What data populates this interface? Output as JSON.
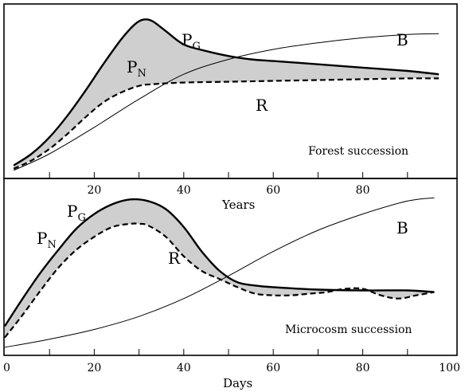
{
  "chart_data": [
    {
      "type": "line",
      "panel": "top",
      "annotation": "Forest succession",
      "xlabel": "Years",
      "x_ticks": [
        20,
        40,
        60,
        80
      ],
      "xlim": [
        0,
        100
      ],
      "ylim": [
        0,
        1
      ],
      "shaded_between": [
        "PG",
        "R"
      ],
      "series": [
        {
          "name": "PG",
          "style": "solid-thick",
          "x": [
            2,
            6,
            10,
            14,
            18,
            22,
            26,
            29,
            31,
            33,
            36,
            40,
            45,
            50,
            55,
            60,
            70,
            80,
            90,
            97
          ],
          "y": [
            0.05,
            0.12,
            0.22,
            0.35,
            0.5,
            0.66,
            0.81,
            0.9,
            0.93,
            0.92,
            0.86,
            0.78,
            0.74,
            0.71,
            0.69,
            0.68,
            0.66,
            0.64,
            0.62,
            0.6
          ]
        },
        {
          "name": "R",
          "style": "dashed",
          "x": [
            2,
            6,
            10,
            14,
            18,
            22,
            26,
            30,
            33,
            40,
            50,
            60,
            70,
            80,
            90,
            97
          ],
          "y": [
            0.03,
            0.08,
            0.15,
            0.24,
            0.34,
            0.43,
            0.49,
            0.53,
            0.54,
            0.55,
            0.555,
            0.56,
            0.565,
            0.57,
            0.575,
            0.575
          ]
        },
        {
          "name": "B",
          "style": "solid-thin",
          "x": [
            2,
            10,
            20,
            30,
            40,
            50,
            60,
            70,
            80,
            90,
            97
          ],
          "y": [
            0.02,
            0.12,
            0.28,
            0.45,
            0.6,
            0.69,
            0.75,
            0.79,
            0.82,
            0.84,
            0.845
          ]
        }
      ],
      "labels": {
        "pg_main": "P",
        "pg_sub": "G",
        "pn_main": "P",
        "pn_sub": "N",
        "r": "R",
        "b": "B"
      }
    },
    {
      "type": "line",
      "panel": "bottom",
      "annotation": "Microcosm succession",
      "xlabel": "Days",
      "x_ticks": [
        0,
        20,
        40,
        60,
        80,
        100
      ],
      "xlim": [
        0,
        100
      ],
      "ylim": [
        0,
        1
      ],
      "shaded_between": [
        "PG",
        "R"
      ],
      "series": [
        {
          "name": "PG",
          "style": "solid-thick",
          "x": [
            0,
            4,
            8,
            12,
            16,
            20,
            24,
            28,
            32,
            36,
            40,
            44,
            48,
            52,
            56,
            60,
            70,
            80,
            90,
            96
          ],
          "y": [
            0.15,
            0.32,
            0.48,
            0.62,
            0.75,
            0.84,
            0.9,
            0.93,
            0.92,
            0.87,
            0.76,
            0.61,
            0.49,
            0.42,
            0.4,
            0.39,
            0.375,
            0.37,
            0.37,
            0.36
          ]
        },
        {
          "name": "R",
          "style": "dashed",
          "x": [
            0,
            4,
            8,
            12,
            16,
            20,
            24,
            28,
            30,
            32,
            36,
            40,
            44,
            48,
            52,
            56,
            60,
            64,
            68,
            72,
            76,
            80,
            84,
            88,
            92,
            96
          ],
          "y": [
            0.08,
            0.22,
            0.37,
            0.51,
            0.62,
            0.7,
            0.76,
            0.78,
            0.78,
            0.77,
            0.7,
            0.58,
            0.49,
            0.44,
            0.39,
            0.35,
            0.34,
            0.34,
            0.35,
            0.36,
            0.38,
            0.38,
            0.34,
            0.32,
            0.34,
            0.36
          ]
        },
        {
          "name": "B",
          "style": "solid-thin",
          "x": [
            0,
            10,
            20,
            30,
            40,
            50,
            60,
            70,
            80,
            90,
            96
          ],
          "y": [
            0.02,
            0.07,
            0.13,
            0.21,
            0.32,
            0.46,
            0.61,
            0.74,
            0.84,
            0.92,
            0.94
          ]
        }
      ],
      "labels": {
        "pg_main": "P",
        "pg_sub": "G",
        "pn_main": "P",
        "pn_sub": "N",
        "r": "R",
        "b": "B"
      }
    }
  ]
}
